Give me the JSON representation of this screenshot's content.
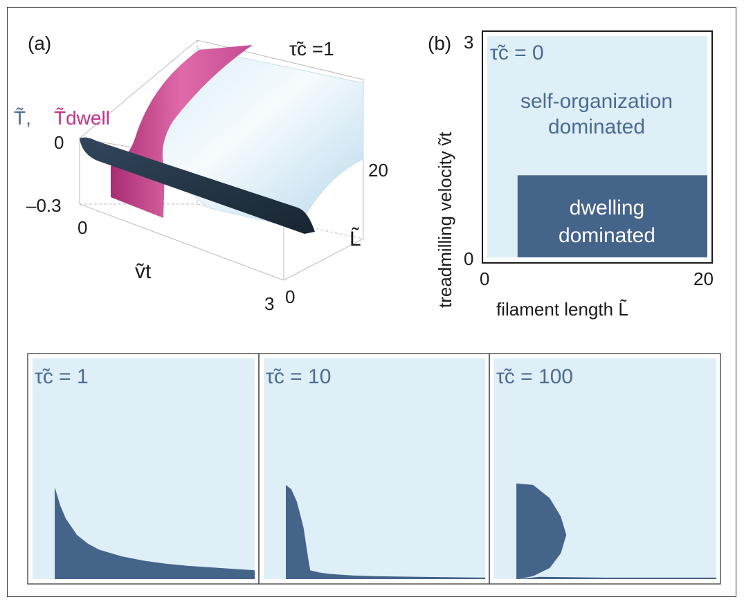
{
  "colors": {
    "light": "#dfeff7",
    "dark": "#45648a",
    "magenta": "#c94f96",
    "navy": "#1f2f42",
    "label_blue": "#4b6b93"
  },
  "panel_a": {
    "label": "(a)",
    "tau_title": "τ̃c =1",
    "z_label_T": "T̃,",
    "z_label_Tdwell": "T̃dwell",
    "ticks": {
      "z_top": "0",
      "z_bottom": "–0.3",
      "v_zero": "0",
      "v_max": "3",
      "L_zero": "0",
      "L_max": "20"
    },
    "v_label": "ṽt",
    "L_label": "L̃"
  },
  "panel_b": {
    "label": "(b)",
    "tau": "τ̃c = 0",
    "region_self": [
      "self-organization",
      "dominated"
    ],
    "region_dwell": [
      "dwelling",
      "dominated"
    ],
    "ylabel": "treadmilling velocity ṽt",
    "xlabel": "filament length L̃",
    "y_ticks": [
      "3",
      "0"
    ],
    "x_ticks": [
      "0",
      "20"
    ]
  },
  "chart_data": [
    {
      "type": "heatmap",
      "title": "τ̃c = 0",
      "xlabel": "filament length L̃",
      "ylabel": "treadmilling velocity ṽt",
      "xlim": [
        0,
        20
      ],
      "ylim": [
        0,
        3
      ],
      "regions": [
        {
          "name": "self-organization dominated",
          "color": "#dfeff7"
        },
        {
          "name": "dwelling dominated",
          "color": "#45648a",
          "x_range": [
            2,
            20
          ],
          "y_range": [
            0,
            1.3
          ]
        }
      ]
    },
    {
      "type": "area",
      "title": "τ̃c = 1",
      "xlim": [
        0,
        20
      ],
      "ylim": [
        0,
        3
      ],
      "boundary": {
        "x": [
          2,
          2.5,
          3,
          4,
          5,
          6,
          8,
          10,
          12,
          14,
          16,
          18,
          20
        ],
        "y": [
          1.25,
          1.0,
          0.82,
          0.6,
          0.48,
          0.4,
          0.31,
          0.25,
          0.21,
          0.18,
          0.16,
          0.14,
          0.12
        ]
      }
    },
    {
      "type": "area",
      "title": "τ̃c = 10",
      "xlim": [
        0,
        20
      ],
      "ylim": [
        0,
        3
      ],
      "boundary": {
        "x": [
          2,
          2.5,
          3,
          3.6,
          4,
          4.2,
          5,
          6,
          8,
          10,
          14,
          20
        ],
        "y": [
          1.28,
          1.22,
          1.05,
          0.7,
          0.3,
          0.12,
          0.09,
          0.07,
          0.05,
          0.04,
          0.03,
          0.02
        ]
      }
    },
    {
      "type": "area",
      "title": "τ̃c = 100",
      "xlim": [
        0,
        20
      ],
      "ylim": [
        0,
        3
      ],
      "boundary": {
        "x": [
          2,
          3.5,
          5,
          6,
          6.5,
          6,
          5,
          3.5,
          2.2,
          4,
          10,
          20
        ],
        "y": [
          1.3,
          1.28,
          1.1,
          0.85,
          0.6,
          0.35,
          0.15,
          0.04,
          0.0,
          0.03,
          0.02,
          0.02
        ]
      }
    }
  ],
  "bottom_panels": [
    {
      "tau": "τ̃c = 1"
    },
    {
      "tau": "τ̃c = 10"
    },
    {
      "tau": "τ̃c = 100"
    }
  ]
}
